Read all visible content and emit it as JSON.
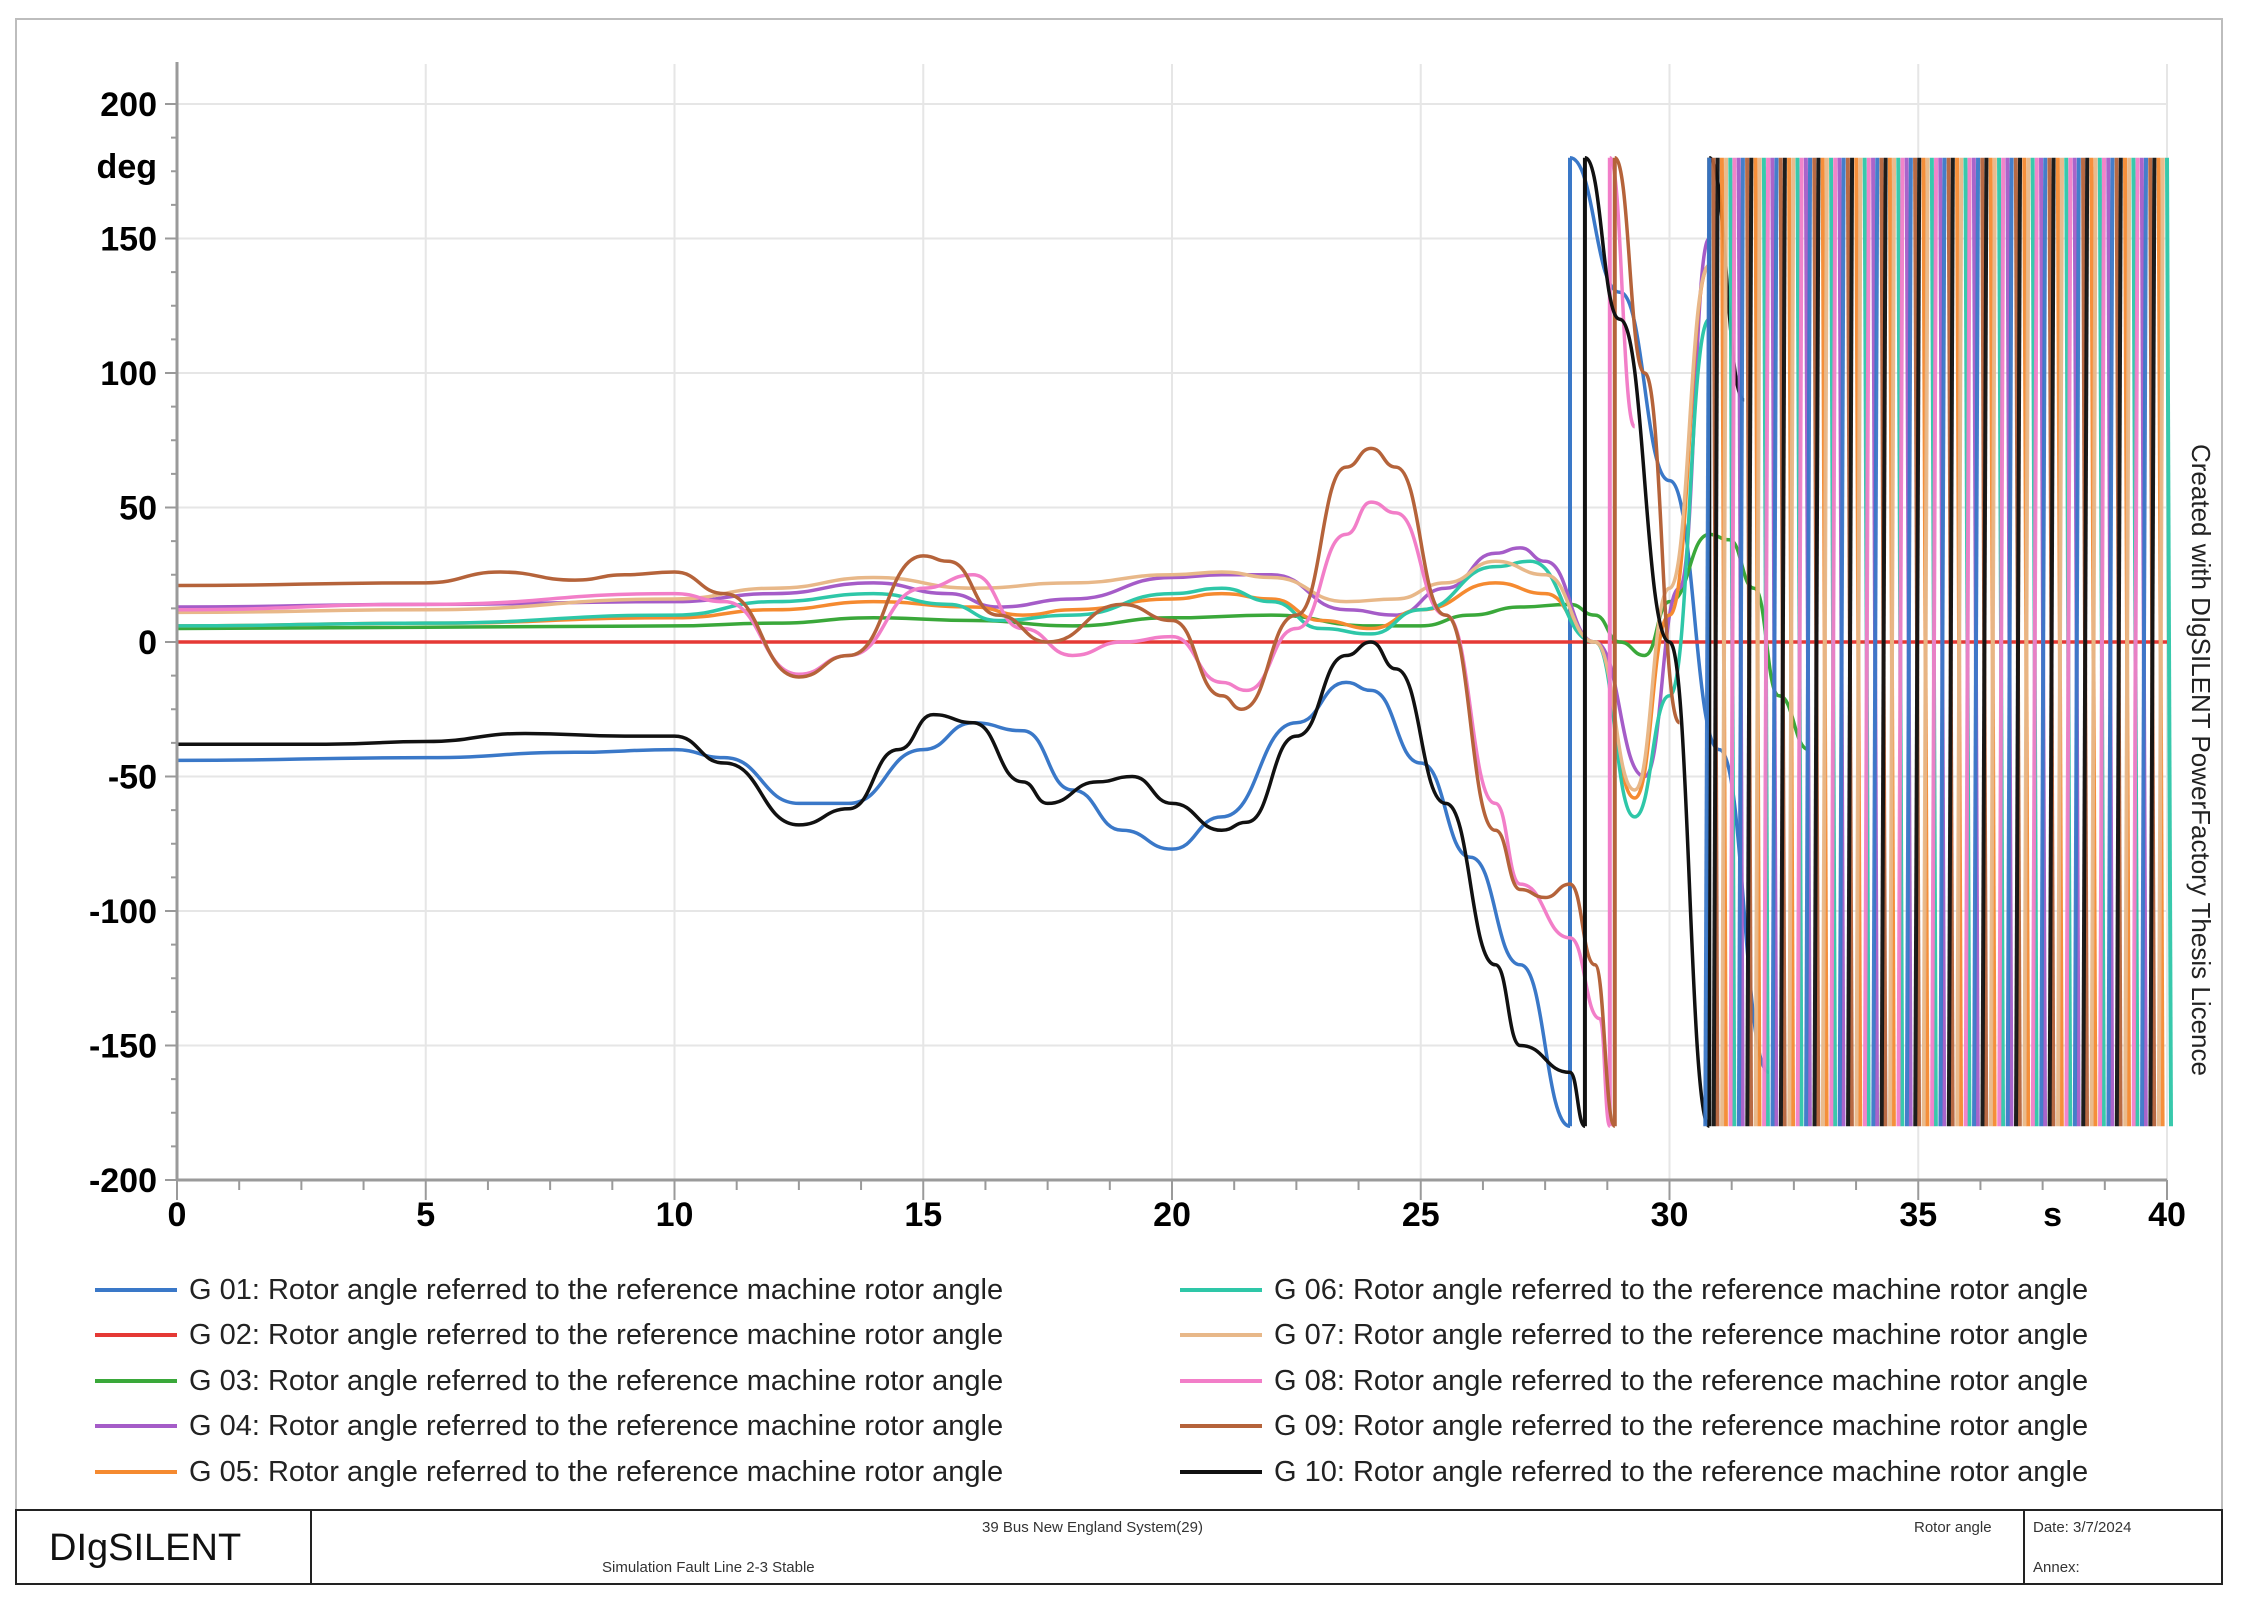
{
  "chart_data": {
    "type": "line",
    "title": "",
    "xlabel": "s",
    "ylabel": "deg",
    "xlim": [
      0,
      40
    ],
    "ylim": [
      -200,
      200
    ],
    "xticks": [
      0,
      5,
      10,
      15,
      20,
      25,
      30,
      35,
      40
    ],
    "yticks": [
      200,
      150,
      100,
      50,
      0,
      -50,
      -100,
      -150,
      -200
    ],
    "x_tick_labels": [
      "0",
      "5",
      "10",
      "15",
      "20",
      "25",
      "30",
      "35",
      "s",
      "40"
    ],
    "y_tick_labels": [
      "200",
      "deg",
      "150",
      "100",
      "50",
      "0",
      "-50",
      "-100",
      "-150",
      "-200"
    ],
    "wrap_range": [
      -180,
      180
    ],
    "series": [
      {
        "name": "G 01: Rotor angle referred to the reference machine rotor angle",
        "color": "#3a78c8",
        "points": [
          [
            0,
            -44
          ],
          [
            5,
            -43
          ],
          [
            8,
            -41
          ],
          [
            10,
            -40
          ],
          [
            11,
            -43
          ],
          [
            12.5,
            -60
          ],
          [
            13.5,
            -60
          ],
          [
            15,
            -40
          ],
          [
            16,
            -30
          ],
          [
            17,
            -33
          ],
          [
            18,
            -55
          ],
          [
            19,
            -70
          ],
          [
            20,
            -77
          ],
          [
            21,
            -65
          ],
          [
            22.5,
            -30
          ],
          [
            23.5,
            -15
          ],
          [
            24,
            -18
          ],
          [
            25,
            -45
          ],
          [
            26,
            -80
          ],
          [
            27,
            -120
          ],
          [
            28,
            -180
          ],
          [
            28,
            180
          ],
          [
            29,
            130
          ],
          [
            30,
            60
          ],
          [
            31,
            -40
          ],
          [
            32,
            -160
          ]
        ]
      },
      {
        "name": "G 02: Rotor angle referred to the reference machine rotor angle",
        "color": "#e53935",
        "points": [
          [
            0,
            0
          ],
          [
            40,
            0
          ]
        ]
      },
      {
        "name": "G 03: Rotor angle referred to the reference machine rotor angle",
        "color": "#3aa83a",
        "points": [
          [
            0,
            5
          ],
          [
            10,
            6
          ],
          [
            12,
            7
          ],
          [
            14,
            9
          ],
          [
            16,
            8
          ],
          [
            18,
            6
          ],
          [
            20,
            9
          ],
          [
            22,
            10
          ],
          [
            24,
            6
          ],
          [
            25,
            6
          ],
          [
            26,
            10
          ],
          [
            27,
            13
          ],
          [
            28,
            14
          ],
          [
            28.5,
            10
          ],
          [
            29,
            0
          ],
          [
            29.5,
            -5
          ],
          [
            30,
            15
          ],
          [
            30.8,
            40
          ],
          [
            31.2,
            38
          ],
          [
            31.7,
            20
          ],
          [
            32.2,
            -20
          ],
          [
            32.8,
            -40
          ]
        ]
      },
      {
        "name": "G 04: Rotor angle referred to the reference machine rotor angle",
        "color": "#a55cc8",
        "points": [
          [
            0,
            13
          ],
          [
            5,
            14
          ],
          [
            10,
            15
          ],
          [
            12,
            18
          ],
          [
            14,
            22
          ],
          [
            15.5,
            18
          ],
          [
            16.5,
            13
          ],
          [
            18,
            16
          ],
          [
            20,
            24
          ],
          [
            21,
            25
          ],
          [
            22,
            25
          ],
          [
            23.5,
            12
          ],
          [
            24.5,
            10
          ],
          [
            25.5,
            20
          ],
          [
            26.5,
            33
          ],
          [
            27,
            35
          ],
          [
            27.5,
            30
          ],
          [
            28.5,
            0
          ],
          [
            29.5,
            -50
          ],
          [
            30.2,
            20
          ],
          [
            30.8,
            150
          ]
        ]
      },
      {
        "name": "G 05: Rotor angle referred to the reference machine rotor angle",
        "color": "#f58a30",
        "points": [
          [
            0,
            6
          ],
          [
            5,
            7
          ],
          [
            10,
            9
          ],
          [
            12,
            12
          ],
          [
            14,
            15
          ],
          [
            16,
            13
          ],
          [
            17,
            10
          ],
          [
            18,
            12
          ],
          [
            20,
            16
          ],
          [
            21,
            18
          ],
          [
            22,
            16
          ],
          [
            23,
            8
          ],
          [
            24,
            5
          ],
          [
            25,
            12
          ],
          [
            26.5,
            22
          ],
          [
            27.5,
            18
          ],
          [
            28.5,
            0
          ],
          [
            29.3,
            -58
          ],
          [
            30,
            10
          ],
          [
            30.8,
            140
          ]
        ]
      },
      {
        "name": "G 06: Rotor angle referred to the reference machine rotor angle",
        "color": "#2ec7a8",
        "points": [
          [
            0,
            6
          ],
          [
            5,
            7
          ],
          [
            10,
            10
          ],
          [
            12,
            15
          ],
          [
            14,
            18
          ],
          [
            15.5,
            14
          ],
          [
            16.5,
            8
          ],
          [
            18,
            10
          ],
          [
            20,
            18
          ],
          [
            21,
            20
          ],
          [
            22,
            15
          ],
          [
            23,
            5
          ],
          [
            24,
            3
          ],
          [
            25,
            12
          ],
          [
            26.5,
            28
          ],
          [
            27.2,
            30
          ],
          [
            28.5,
            0
          ],
          [
            29.3,
            -65
          ],
          [
            30,
            -20
          ],
          [
            30.8,
            120
          ]
        ]
      },
      {
        "name": "G 07: Rotor angle referred to the reference machine rotor angle",
        "color": "#e8b889",
        "points": [
          [
            0,
            11
          ],
          [
            5,
            12
          ],
          [
            10,
            16
          ],
          [
            12,
            20
          ],
          [
            14,
            24
          ],
          [
            16,
            20
          ],
          [
            18,
            22
          ],
          [
            20,
            25
          ],
          [
            21,
            26
          ],
          [
            22,
            24
          ],
          [
            23.5,
            15
          ],
          [
            24.5,
            16
          ],
          [
            25.5,
            22
          ],
          [
            26.5,
            30
          ],
          [
            27.5,
            25
          ],
          [
            28.5,
            0
          ],
          [
            29.3,
            -55
          ],
          [
            30,
            20
          ],
          [
            30.8,
            140
          ]
        ]
      },
      {
        "name": "G 08: Rotor angle referred to the reference machine rotor angle",
        "color": "#f27ec8",
        "points": [
          [
            0,
            12
          ],
          [
            5,
            14
          ],
          [
            10,
            18
          ],
          [
            11,
            15
          ],
          [
            12.5,
            -12
          ],
          [
            13.5,
            -5
          ],
          [
            15,
            20
          ],
          [
            16,
            25
          ],
          [
            17,
            5
          ],
          [
            18,
            -5
          ],
          [
            19,
            0
          ],
          [
            20,
            2
          ],
          [
            21,
            -15
          ],
          [
            21.5,
            -18
          ],
          [
            22.5,
            5
          ],
          [
            23.5,
            40
          ],
          [
            24,
            52
          ],
          [
            24.5,
            48
          ],
          [
            25.5,
            10
          ],
          [
            26.5,
            -60
          ],
          [
            27,
            -90
          ],
          [
            28,
            -110
          ],
          [
            28.6,
            -140
          ],
          [
            28.8,
            -180
          ],
          [
            28.8,
            180
          ],
          [
            29.3,
            80
          ]
        ]
      },
      {
        "name": "G 09: Rotor angle referred to the reference machine rotor angle",
        "color": "#b5633a",
        "points": [
          [
            0,
            21
          ],
          [
            5,
            22
          ],
          [
            6.5,
            26
          ],
          [
            8,
            23
          ],
          [
            9,
            25
          ],
          [
            10,
            26
          ],
          [
            11,
            18
          ],
          [
            12.5,
            -13
          ],
          [
            13.5,
            -5
          ],
          [
            15,
            32
          ],
          [
            15.5,
            30
          ],
          [
            16.5,
            10
          ],
          [
            17.5,
            0
          ],
          [
            19,
            14
          ],
          [
            20,
            8
          ],
          [
            21,
            -20
          ],
          [
            21.4,
            -25
          ],
          [
            22.5,
            10
          ],
          [
            23.5,
            65
          ],
          [
            24,
            72
          ],
          [
            24.5,
            65
          ],
          [
            25.5,
            10
          ],
          [
            26.5,
            -70
          ],
          [
            27,
            -92
          ],
          [
            27.5,
            -95
          ],
          [
            28,
            -90
          ],
          [
            28.5,
            -120
          ],
          [
            28.9,
            -180
          ],
          [
            28.9,
            180
          ],
          [
            29.5,
            100
          ],
          [
            30.2,
            -30
          ]
        ]
      },
      {
        "name": "G 10: Rotor angle referred to the reference machine rotor angle",
        "color": "#111111",
        "points": [
          [
            0,
            -38
          ],
          [
            3,
            -38
          ],
          [
            5,
            -37
          ],
          [
            7,
            -34
          ],
          [
            9,
            -35
          ],
          [
            10,
            -35
          ],
          [
            11,
            -45
          ],
          [
            12.5,
            -68
          ],
          [
            13.5,
            -62
          ],
          [
            14.5,
            -40
          ],
          [
            15.2,
            -27
          ],
          [
            16,
            -30
          ],
          [
            17,
            -52
          ],
          [
            17.5,
            -60
          ],
          [
            18.5,
            -52
          ],
          [
            19.2,
            -50
          ],
          [
            20,
            -60
          ],
          [
            21,
            -70
          ],
          [
            21.5,
            -67
          ],
          [
            22.5,
            -35
          ],
          [
            23.5,
            -5
          ],
          [
            24,
            0
          ],
          [
            24.5,
            -10
          ],
          [
            25.5,
            -60
          ],
          [
            26.5,
            -120
          ],
          [
            27,
            -150
          ],
          [
            28,
            -160
          ],
          [
            28.3,
            -180
          ],
          [
            28.3,
            180
          ],
          [
            29,
            120
          ],
          [
            30,
            0
          ],
          [
            30.8,
            -180
          ],
          [
            30.8,
            180
          ],
          [
            31.5,
            90
          ]
        ]
      }
    ],
    "fast_wrap_lines": {
      "x_start": 30.8,
      "x_end": 40,
      "count": 110,
      "colors": [
        "#3a78c8",
        "#b5633a",
        "#111111",
        "#f58a30",
        "#e8b889",
        "#2ec7a8",
        "#f27ec8",
        "#a55cc8"
      ]
    }
  },
  "legend": [
    {
      "color": "#3a78c8",
      "label": "G 01: Rotor angle referred to the reference machine rotor angle"
    },
    {
      "color": "#e53935",
      "label": "G 02: Rotor angle referred to the reference machine rotor angle"
    },
    {
      "color": "#3aa83a",
      "label": "G 03: Rotor angle referred to the reference machine rotor angle"
    },
    {
      "color": "#a55cc8",
      "label": "G 04: Rotor angle referred to the reference machine rotor angle"
    },
    {
      "color": "#f58a30",
      "label": "G 05: Rotor angle referred to the reference machine rotor angle"
    },
    {
      "color": "#2ec7a8",
      "label": "G 06: Rotor angle referred to the reference machine rotor angle"
    },
    {
      "color": "#e8b889",
      "label": "G 07: Rotor angle referred to the reference machine rotor angle"
    },
    {
      "color": "#f27ec8",
      "label": "G 08: Rotor angle referred to the reference machine rotor angle"
    },
    {
      "color": "#b5633a",
      "label": "G 09: Rotor angle referred to the reference machine rotor angle"
    },
    {
      "color": "#111111",
      "label": "G 10: Rotor angle referred to the reference machine rotor angle"
    }
  ],
  "watermark": "Created with DIgSILENT PowerFactory Thesis Licence",
  "footer": {
    "brand": "DIgSILENT",
    "project": "39 Bus New England System(29)",
    "case": "Simulation Fault Line 2-3 Stable",
    "plot_name": "Rotor angle",
    "date": "Date: 3/7/2024",
    "annex": "Annex:"
  }
}
